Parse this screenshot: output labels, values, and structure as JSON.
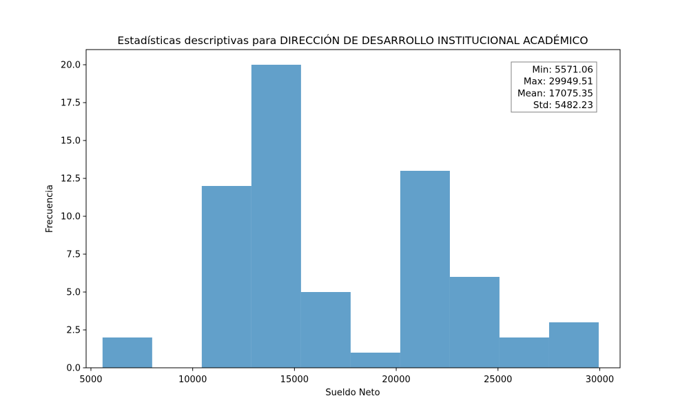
{
  "chart_data": {
    "type": "bar",
    "title": "Estadísticas descriptivas para DIRECCIÓN DE DESARROLLO INSTITUCIONAL ACADÉMICO",
    "xlabel": "Sueldo Neto",
    "ylabel": "Frecuencia",
    "xlim": [
      4764.1,
      31000
    ],
    "ylim": [
      0,
      21
    ],
    "bins": [
      {
        "start": 5571.06,
        "end": 8008.9,
        "count": 2
      },
      {
        "start": 8008.9,
        "end": 10446.75,
        "count": 0
      },
      {
        "start": 10446.75,
        "end": 12884.59,
        "count": 12
      },
      {
        "start": 12884.59,
        "end": 15322.43,
        "count": 20
      },
      {
        "start": 15322.43,
        "end": 17760.28,
        "count": 5
      },
      {
        "start": 17760.28,
        "end": 20198.12,
        "count": 1
      },
      {
        "start": 20198.12,
        "end": 22635.97,
        "count": 13
      },
      {
        "start": 22635.97,
        "end": 25073.81,
        "count": 6
      },
      {
        "start": 25073.81,
        "end": 27511.66,
        "count": 2
      },
      {
        "start": 27511.66,
        "end": 29949.51,
        "count": 3
      }
    ],
    "x_ticks": [
      5000,
      10000,
      15000,
      20000,
      25000,
      30000
    ],
    "y_ticks": [
      0.0,
      2.5,
      5.0,
      7.5,
      10.0,
      12.5,
      15.0,
      17.5,
      20.0
    ],
    "bar_color": "#1f77b4",
    "bar_alpha": 0.7,
    "grid": false,
    "stats_box": {
      "placement": "top-right",
      "lines": [
        "Min: 5571.06",
        "Max: 29949.51",
        "Mean: 17075.35",
        "Std: 5482.23"
      ]
    }
  }
}
